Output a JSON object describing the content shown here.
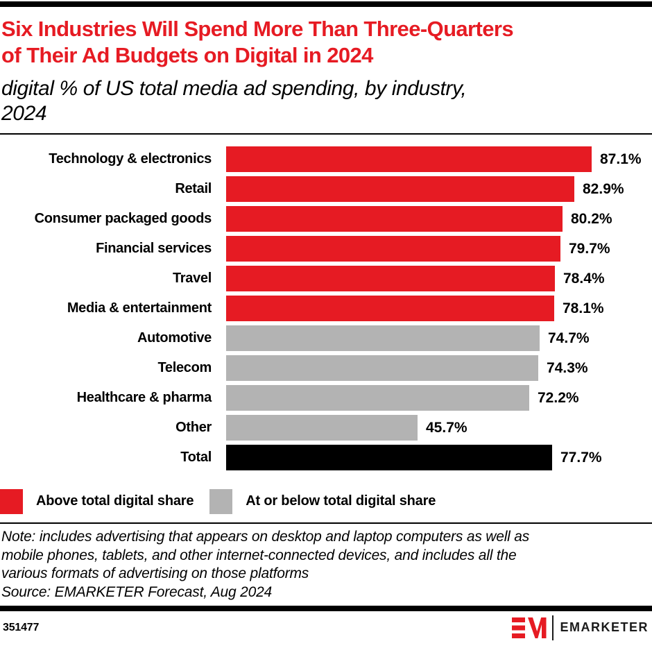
{
  "header": {
    "title_lines": [
      "Six Industries Will Spend More Than Three-Quarters",
      "of Their Ad Budgets on Digital in 2024"
    ],
    "subtitle_lines": [
      "digital % of US total media ad spending, by industry,",
      "2024"
    ],
    "title_color": "#E61B23"
  },
  "chart_data": {
    "type": "bar",
    "orientation": "horizontal",
    "title": "Six Industries Will Spend More Than Three-Quarters of Their Ad Budgets on Digital in 2024",
    "subtitle": "digital % of US total media ad spending, by industry, 2024",
    "unit": "%",
    "xlim": [
      0,
      100
    ],
    "grid": false,
    "categories": [
      "Technology & electronics",
      "Retail",
      "Consumer packaged goods",
      "Financial services",
      "Travel",
      "Media & entertainment",
      "Automotive",
      "Telecom",
      "Healthcare & pharma",
      "Other",
      "Total"
    ],
    "values": [
      87.1,
      82.9,
      80.2,
      79.7,
      78.4,
      78.1,
      74.7,
      74.3,
      72.2,
      45.7,
      77.7
    ],
    "value_labels": [
      "87.1%",
      "82.9%",
      "80.2%",
      "79.7%",
      "78.4%",
      "78.1%",
      "74.7%",
      "74.3%",
      "72.2%",
      "45.7%",
      "77.7%"
    ],
    "bar_colors": [
      "#E61B23",
      "#E61B23",
      "#E61B23",
      "#E61B23",
      "#E61B23",
      "#E61B23",
      "#B3B3B3",
      "#B3B3B3",
      "#B3B3B3",
      "#B3B3B3",
      "#000000"
    ]
  },
  "legend": {
    "items": [
      {
        "label": "Above total digital share",
        "color": "#E61B23"
      },
      {
        "label": "At or below total digital share",
        "color": "#B3B3B3"
      }
    ]
  },
  "notes": {
    "lines": [
      "Note: includes advertising that appears on desktop and laptop computers as well as",
      "mobile phones, tablets, and other internet-connected devices, and includes all the",
      "various formats of advertising on those platforms"
    ],
    "source": "Source: EMARKETER Forecast, Aug 2024"
  },
  "footer": {
    "chart_id": "351477",
    "brand": "EMARKETER",
    "brand_red": "#E61B23"
  }
}
